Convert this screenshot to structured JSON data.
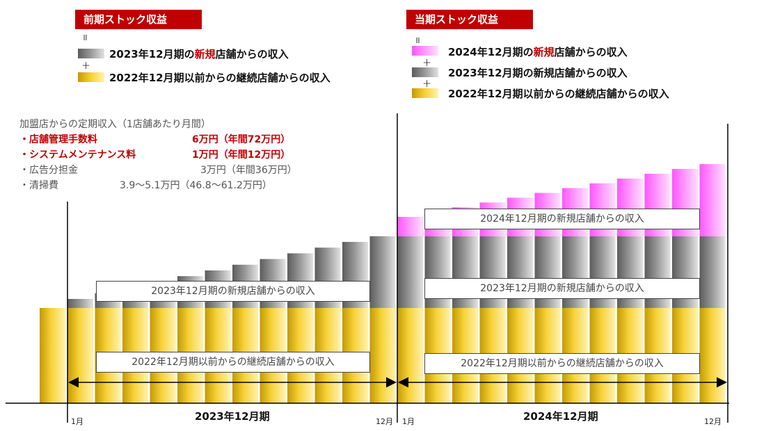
{
  "headings": {
    "prev": "前期ストック収益",
    "curr": "当期ストック収益"
  },
  "ops": {
    "eq": "॥",
    "plus": "＋"
  },
  "legend_prev": [
    {
      "pre": "2023年12月期の",
      "hl": "新規",
      "post": "店舗からの収入"
    },
    {
      "pre": "2022年12月期以前からの継続店舗からの収入",
      "hl": "",
      "post": ""
    }
  ],
  "legend_curr": [
    {
      "pre": "2024年12月期の",
      "hl": "新規",
      "post": "店舗からの収入"
    },
    {
      "pre": "2023年12月期の新規店舗からの収入",
      "hl": "",
      "post": ""
    },
    {
      "pre": "2022年12月期以前からの継続店舗からの収入",
      "hl": "",
      "post": ""
    }
  ],
  "fees": {
    "title": "加盟店からの定期収入（1店舗あたり月間）",
    "items": [
      {
        "name": "・店舗管理手数料",
        "value": "6万円（年間72万円）",
        "emphasis": true
      },
      {
        "name": "・システムメンテナンス料",
        "value": "1万円（年間12万円）",
        "emphasis": true
      },
      {
        "name": "・広告分担金",
        "value": "3万円（年間36万円）",
        "emphasis": false
      },
      {
        "name": "・清掃費",
        "value": "3.9～5.1万円（46.8～61.2万円）",
        "emphasis": false
      }
    ]
  },
  "boxes": {
    "p2023_new": "2023年12月期の新規店舗からの収入",
    "p2022_cont": "2022年12月期以前からの継続店舗からの収入",
    "p2024_new": "2024年12月期の新規店舗からの収入",
    "c2023_new": "2023年12月期の新規店舗からの収入",
    "c2022_cont": "2022年12月期以前からの継続店舗からの収入"
  },
  "axis": {
    "jan": "1月",
    "dec": "12月",
    "period_2023": "2023年12月期",
    "period_2024": "2024年12月期"
  },
  "colors": {
    "heading_bg": "#c00000",
    "highlight": "#c00000",
    "gold": "#f2c200",
    "gray": "#8a8a8a",
    "pink": "#ff66ff"
  }
}
